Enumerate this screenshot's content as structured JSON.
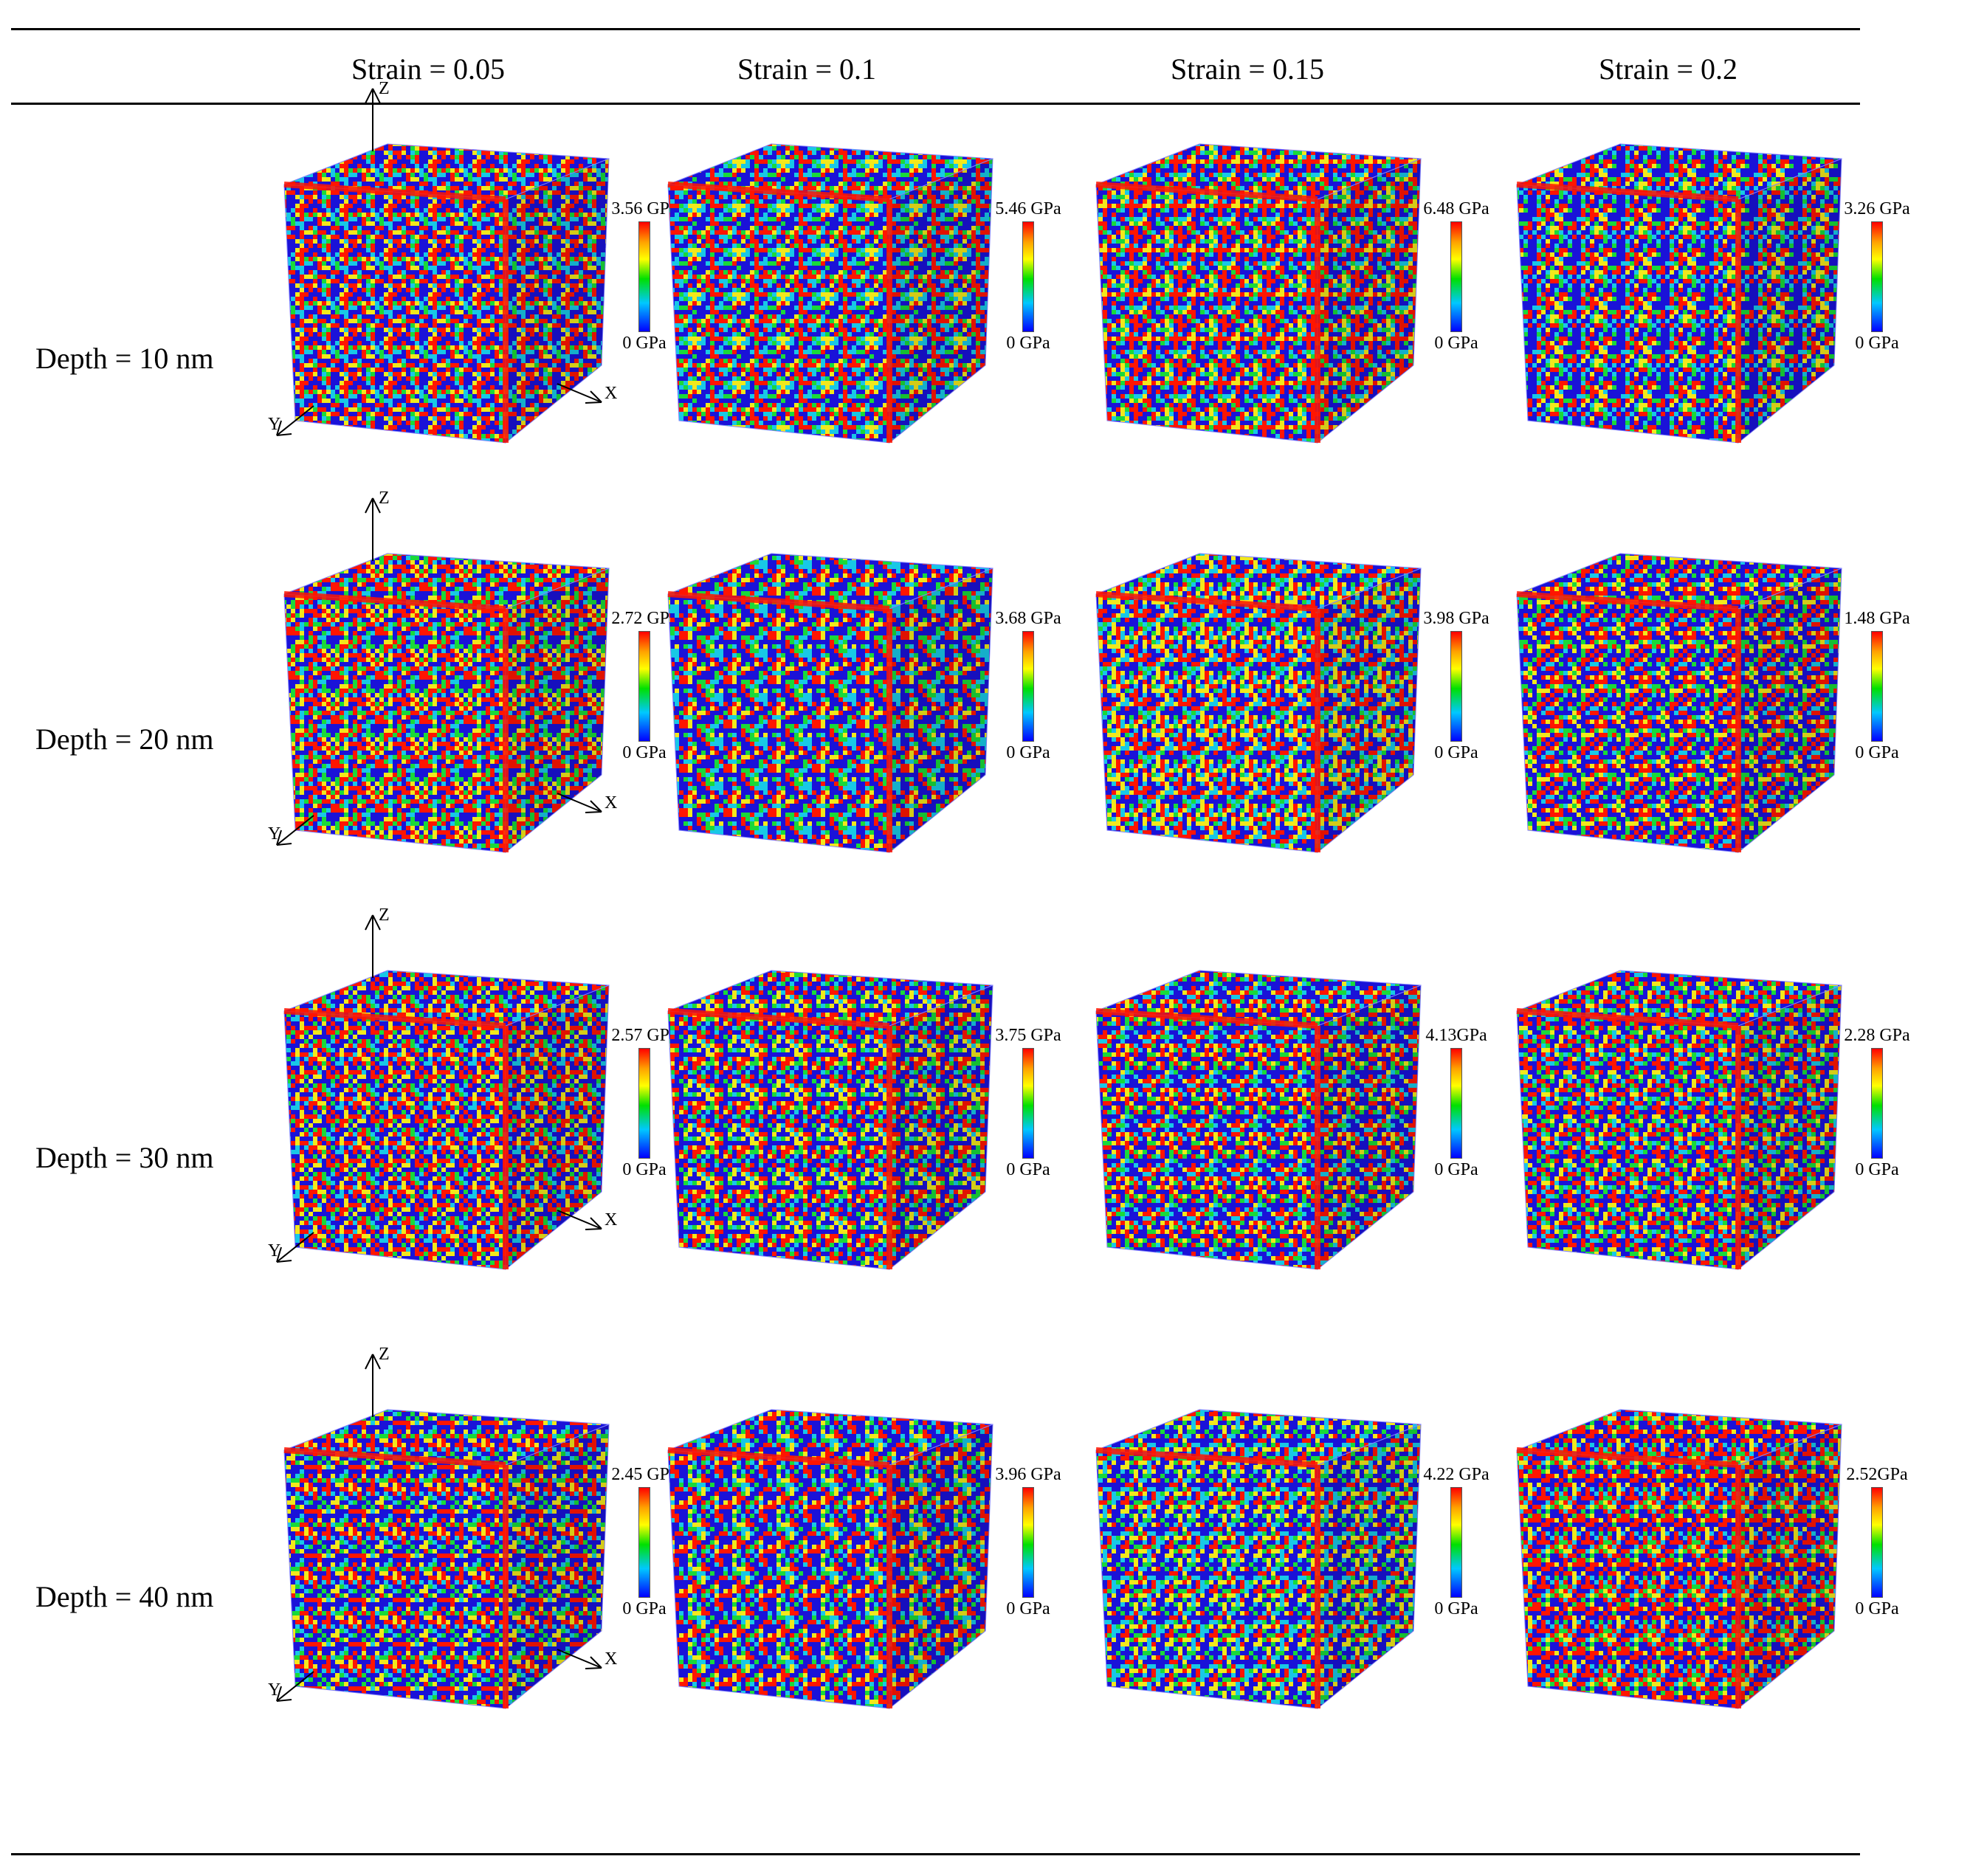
{
  "columns": [
    "Strain = 0.05",
    "Strain = 0.1",
    "Strain = 0.15",
    "Strain = 0.2"
  ],
  "rows": [
    {
      "label": "Depth = 10 nm",
      "panels": [
        {
          "max": "3.56 GPa",
          "min": "0 GPa"
        },
        {
          "max": "5.46 GPa",
          "min": "0 GPa"
        },
        {
          "max": "6.48 GPa",
          "min": "0 GPa"
        },
        {
          "max": "3.26 GPa",
          "min": "0 GPa"
        }
      ]
    },
    {
      "label": "Depth = 20 nm",
      "panels": [
        {
          "max": "2.72 GPa",
          "min": "0 GPa"
        },
        {
          "max": "3.68 GPa",
          "min": "0 GPa"
        },
        {
          "max": "3.98 GPa",
          "min": "0 GPa"
        },
        {
          "max": "1.48 GPa",
          "min": "0 GPa"
        }
      ]
    },
    {
      "label": "Depth = 30 nm",
      "panels": [
        {
          "max": "2.57 GPa",
          "min": "0 GPa"
        },
        {
          "max": "3.75 GPa",
          "min": "0 GPa"
        },
        {
          "max": "4.13GPa",
          "min": "0 GPa"
        },
        {
          "max": "2.28 GPa",
          "min": "0 GPa"
        }
      ]
    },
    {
      "label": "Depth = 40 nm",
      "panels": [
        {
          "max": "2.45 GPa",
          "min": "0 GPa"
        },
        {
          "max": "3.96 GPa",
          "min": "0 GPa"
        },
        {
          "max": "4.22 GPa",
          "min": "0 GPa"
        },
        {
          "max": "2.52GPa",
          "min": "0 GPa"
        }
      ]
    }
  ],
  "axes": {
    "x": "X",
    "y": "Y",
    "z": "Z"
  },
  "colors": {
    "blue": "#1a12d8",
    "red": "#ff1500",
    "green": "#19d93a",
    "cyan": "#18c8e6",
    "yellow": "#f2e81c"
  }
}
